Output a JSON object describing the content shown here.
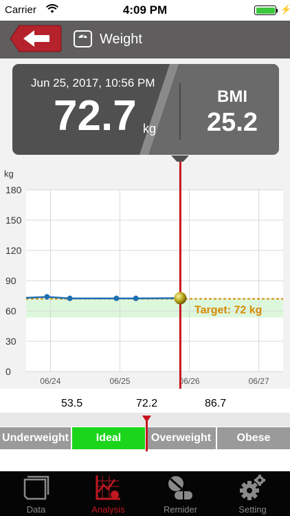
{
  "status_bar": {
    "carrier": "Carrier",
    "time": "4:09 PM"
  },
  "nav": {
    "title": "Weight",
    "back_icon": "back-arrow-icon",
    "title_icon": "scale-icon"
  },
  "summary": {
    "datetime": "Jun 25, 2017, 10:56 PM",
    "weight": "72.7",
    "unit": "kg",
    "bmi_label": "BMI",
    "bmi_value": "25.2"
  },
  "colors": {
    "nav_bg": "#5f5d5d",
    "back_button": "#b5222b",
    "line": "#1f6fb4",
    "target": "#d68a00",
    "marker": "#c8141e",
    "ideal": "#1bd51b",
    "ideal_band": "#ddf7dd",
    "segment_gray": "#9a9a9a"
  },
  "chart_data": {
    "type": "line",
    "ylabel": "kg",
    "ylim": [
      0,
      180
    ],
    "yticks": [
      "0",
      "30",
      "60",
      "90",
      "120",
      "150",
      "180"
    ],
    "x_tick_labels": [
      "06/24",
      "06/25",
      "06/26",
      "06/27"
    ],
    "x_range_days": [
      -0.35,
      3.35
    ],
    "series": [
      {
        "points": [
          {
            "x": -0.35,
            "y": 73
          },
          {
            "x": -0.05,
            "y": 74
          },
          {
            "x": 0.28,
            "y": 72.5
          },
          {
            "x": 0.95,
            "y": 72.5
          },
          {
            "x": 1.23,
            "y": 72.5
          },
          {
            "x": 1.87,
            "y": 72.7
          }
        ]
      }
    ],
    "target": {
      "value": 72,
      "label": "Target: 72 kg"
    },
    "ideal_band": [
      53.5,
      72.2
    ],
    "selected_x": 1.87
  },
  "bmi_thresholds": [
    "53.5",
    "72.2",
    "86.7"
  ],
  "scale_segments": [
    "Underweight",
    "Ideal",
    "Overweight",
    "Obese"
  ],
  "tabs": [
    {
      "label": "Data",
      "icon": "data-folder-icon"
    },
    {
      "label": "Analysis",
      "icon": "analysis-chart-icon"
    },
    {
      "label": "Remider",
      "icon": "pill-reminder-icon"
    },
    {
      "label": "Setting",
      "icon": "gear-icon"
    }
  ]
}
